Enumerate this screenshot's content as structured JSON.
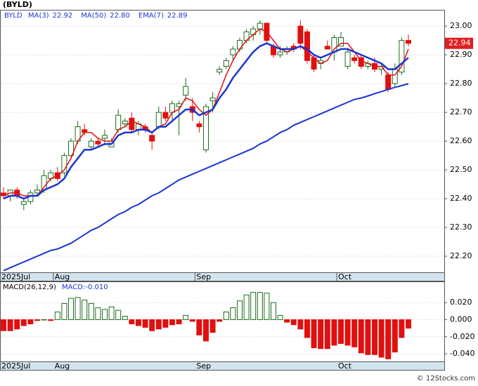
{
  "title": "(BYLD)",
  "footer": "© 12Stocks.com",
  "chart_data": [
    {
      "type": "candlestick",
      "symbol": "BYLD",
      "categories": [
        "2025Jul",
        null,
        null,
        null,
        null,
        null,
        null,
        null,
        "Aug",
        null,
        null,
        null,
        null,
        null,
        null,
        null,
        null,
        null,
        null,
        null,
        null,
        null,
        null,
        null,
        null,
        null,
        null,
        null,
        null,
        "Sep",
        null,
        null,
        null,
        null,
        null,
        null,
        null,
        null,
        null,
        null,
        null,
        null,
        null,
        null,
        null,
        null,
        null,
        null,
        null,
        null,
        "Oct",
        null,
        null,
        null,
        null,
        null,
        null,
        null,
        null,
        null,
        null
      ],
      "open": [
        22.42,
        22.41,
        22.43,
        22.38,
        22.39,
        22.42,
        22.43,
        22.47,
        22.49,
        22.49,
        22.55,
        22.6,
        22.64,
        22.58,
        22.6,
        22.61,
        22.58,
        22.64,
        22.66,
        22.68,
        22.64,
        22.65,
        22.62,
        22.65,
        22.7,
        22.7,
        22.72,
        22.76,
        22.72,
        22.66,
        22.57,
        22.74,
        22.84,
        22.86,
        22.9,
        22.92,
        22.95,
        22.97,
        22.99,
        23.01,
        22.93,
        22.9,
        22.91,
        22.93,
        23.0,
        22.98,
        22.89,
        22.87,
        22.93,
        22.91,
        22.93,
        22.86,
        22.89,
        22.89,
        22.86,
        22.87,
        22.85,
        22.83,
        22.8,
        22.84,
        22.95
      ],
      "high": [
        22.44,
        22.43,
        22.44,
        22.4,
        22.43,
        22.45,
        22.5,
        22.5,
        22.51,
        22.56,
        22.61,
        22.67,
        22.66,
        22.61,
        22.61,
        22.64,
        22.61,
        22.71,
        22.68,
        22.7,
        22.67,
        22.66,
        22.63,
        22.72,
        22.72,
        22.74,
        22.74,
        22.82,
        22.75,
        22.67,
        22.73,
        22.77,
        22.86,
        22.89,
        22.93,
        22.96,
        22.99,
        23.0,
        23.02,
        23.01,
        22.94,
        22.93,
        22.93,
        22.94,
        23.02,
        22.99,
        22.9,
        22.89,
        22.95,
        22.97,
        22.98,
        22.92,
        22.9,
        22.9,
        22.88,
        22.89,
        22.87,
        22.84,
        22.87,
        22.96,
        22.97
      ],
      "low": [
        22.4,
        22.39,
        22.4,
        22.36,
        22.38,
        22.41,
        22.42,
        22.46,
        22.46,
        22.48,
        22.54,
        22.59,
        22.62,
        22.57,
        22.58,
        22.59,
        22.58,
        22.63,
        22.65,
        22.63,
        22.62,
        22.63,
        22.57,
        22.64,
        22.67,
        22.67,
        22.62,
        22.74,
        22.67,
        22.63,
        22.56,
        22.7,
        22.83,
        22.85,
        22.88,
        22.91,
        22.94,
        22.95,
        22.97,
        22.94,
        22.89,
        22.89,
        22.9,
        22.91,
        22.92,
        22.87,
        22.84,
        22.85,
        22.92,
        22.88,
        22.93,
        22.85,
        22.87,
        22.85,
        22.85,
        22.84,
        22.83,
        22.77,
        22.79,
        22.83,
        22.93
      ],
      "close": [
        22.41,
        22.43,
        22.41,
        22.39,
        22.42,
        22.43,
        22.48,
        22.49,
        22.47,
        22.55,
        22.6,
        22.65,
        22.63,
        22.6,
        22.59,
        22.62,
        22.6,
        22.69,
        22.67,
        22.64,
        22.66,
        22.64,
        22.6,
        22.7,
        22.68,
        22.73,
        22.73,
        22.79,
        22.7,
        22.65,
        22.72,
        22.75,
        22.85,
        22.88,
        22.92,
        22.95,
        22.98,
        22.99,
        23.01,
        22.95,
        22.9,
        22.91,
        22.92,
        22.92,
        22.94,
        22.88,
        22.85,
        22.88,
        22.92,
        22.96,
        22.96,
        22.91,
        22.88,
        22.86,
        22.87,
        22.85,
        22.86,
        22.78,
        22.85,
        22.95,
        22.94
      ],
      "up_color": "#1a6b1a",
      "down_color": "#e01010",
      "series": [
        {
          "name": "MA(3)",
          "legend_value": "22.92",
          "color": "#e01010",
          "width": 1.5,
          "values": [
            22.41,
            22.42,
            22.42,
            22.41,
            22.41,
            22.41,
            22.44,
            22.47,
            22.48,
            22.5,
            22.54,
            22.6,
            22.63,
            22.63,
            22.61,
            22.6,
            22.6,
            22.64,
            22.65,
            22.67,
            22.66,
            22.65,
            22.63,
            22.65,
            22.66,
            22.7,
            22.71,
            22.75,
            22.74,
            22.71,
            22.69,
            22.71,
            22.77,
            22.83,
            22.88,
            22.92,
            22.95,
            22.97,
            22.99,
            22.98,
            22.95,
            22.92,
            22.91,
            22.92,
            22.93,
            22.91,
            22.89,
            22.87,
            22.88,
            22.92,
            22.94,
            22.94,
            22.91,
            22.88,
            22.87,
            22.86,
            22.86,
            22.83,
            22.83,
            22.86,
            22.92
          ]
        },
        {
          "name": "MA(50)",
          "legend_value": "22.80",
          "color": "#1c35d0",
          "width": 2,
          "values": [
            22.15,
            22.16,
            22.17,
            22.18,
            22.19,
            22.2,
            22.21,
            22.22,
            22.225,
            22.235,
            22.245,
            22.26,
            22.275,
            22.29,
            22.3,
            22.315,
            22.33,
            22.345,
            22.355,
            22.37,
            22.38,
            22.395,
            22.41,
            22.42,
            22.435,
            22.45,
            22.465,
            22.475,
            22.485,
            22.495,
            22.505,
            22.515,
            22.525,
            22.535,
            22.545,
            22.555,
            22.565,
            22.575,
            22.59,
            22.6,
            22.615,
            22.63,
            22.64,
            22.655,
            22.665,
            22.675,
            22.685,
            22.695,
            22.705,
            22.715,
            22.725,
            22.735,
            22.745,
            22.75,
            22.757,
            22.765,
            22.772,
            22.78,
            22.787,
            22.793,
            22.8
          ]
        },
        {
          "name": "EMA(7)",
          "legend_value": "22.89",
          "color": "#1c35d0",
          "width": 2.5,
          "values": [
            22.4,
            22.41,
            22.41,
            22.4,
            22.41,
            22.41,
            22.43,
            22.44,
            22.45,
            22.47,
            22.51,
            22.54,
            22.57,
            22.57,
            22.58,
            22.59,
            22.59,
            22.62,
            22.63,
            22.63,
            22.64,
            22.64,
            22.63,
            22.65,
            22.65,
            22.67,
            22.69,
            22.71,
            22.71,
            22.69,
            22.7,
            22.71,
            22.75,
            22.78,
            22.82,
            22.85,
            22.88,
            22.91,
            22.93,
            22.94,
            22.93,
            22.92,
            22.92,
            22.92,
            22.93,
            22.92,
            22.9,
            22.89,
            22.9,
            22.91,
            22.92,
            22.92,
            22.91,
            22.9,
            22.89,
            22.88,
            22.87,
            22.85,
            22.85,
            22.87,
            22.89
          ]
        }
      ],
      "ylim": [
        22.144,
        23.054
      ],
      "yticks": [
        {
          "value": 22.2,
          "label": "22.20"
        },
        {
          "value": 22.3,
          "label": "22.30"
        },
        {
          "value": 22.4,
          "label": "22.40"
        },
        {
          "value": 22.5,
          "label": "22.50"
        },
        {
          "value": 22.6,
          "label": "22.60"
        },
        {
          "value": 22.7,
          "label": "22.70"
        },
        {
          "value": 22.8,
          "label": "22.80"
        },
        {
          "value": 22.9,
          "label": "22.90"
        },
        {
          "value": 23.0,
          "label": "23.00"
        }
      ],
      "grid": true
    },
    {
      "type": "bar",
      "legend": [
        "MACD(26,12,9)",
        "MACD:-0.010"
      ],
      "up_color": "#1a6b1a",
      "down_color": "#e01010",
      "values": [
        -0.013,
        -0.013,
        -0.011,
        -0.007,
        -0.005,
        -0.001,
        0,
        -0.001,
        0.009,
        0.019,
        0.025,
        0.026,
        0.023,
        0.019,
        0.014,
        0.012,
        0.015,
        0.011,
        0.004,
        -0.005,
        -0.007,
        -0.009,
        -0.013,
        -0.011,
        -0.009,
        -0.006,
        -0.005,
        0.005,
        -0.002,
        -0.018,
        -0.025,
        -0.015,
        -0.002,
        0.009,
        0.014,
        0.022,
        0.029,
        0.032,
        0.032,
        0.031,
        0.02,
        0.005,
        -0.003,
        -0.006,
        -0.011,
        -0.021,
        -0.033,
        -0.034,
        -0.034,
        -0.03,
        -0.028,
        -0.03,
        -0.032,
        -0.039,
        -0.041,
        -0.041,
        -0.044,
        -0.046,
        -0.038,
        -0.021,
        -0.01
      ],
      "ylim": [
        -0.049,
        0.044
      ],
      "yticks": [
        {
          "value": -0.04,
          "label": "-0.040"
        },
        {
          "value": -0.02,
          "label": "-0.020"
        },
        {
          "value": 0,
          "label": "0.000"
        },
        {
          "value": 0.02,
          "label": "0.020"
        }
      ],
      "grid": true
    }
  ]
}
